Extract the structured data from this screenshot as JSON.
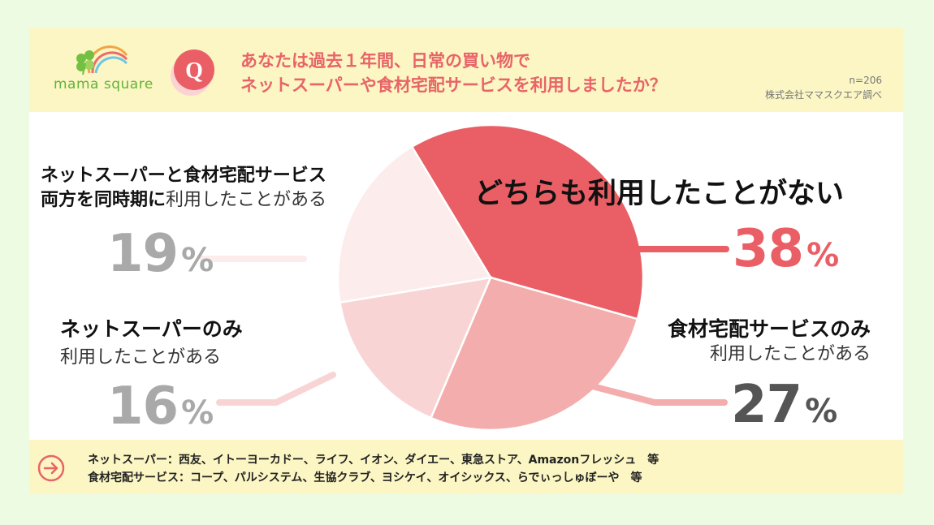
{
  "header": {
    "logo_text": "mama square",
    "badge_letter": "Q",
    "question_line1": "あなたは過去１年間、日常の買い物で",
    "question_line2": "ネットスーパーや食材宅配サービスを利用しましたか？",
    "sample_size": "n=206",
    "source": "株式会社ママスクエア調べ"
  },
  "labels": {
    "neither": {
      "line1": "どちらも利用したことがない",
      "pct": "38",
      "unit": "%"
    },
    "delivery_only": {
      "line1": "食材宅配サービスのみ",
      "line2": "利用したことがある",
      "pct": "27",
      "unit": "%"
    },
    "netsuper_only": {
      "line1": "ネットスーパーのみ",
      "line2": "利用したことがある",
      "pct": "16",
      "unit": "%"
    },
    "both": {
      "line1": "ネットスーパーと食材宅配サービス",
      "line2_bold": "両方を同時期に",
      "line2_thin": "利用したことがある",
      "pct": "19",
      "unit": "%"
    }
  },
  "footer": {
    "line1": "ネットスーパー：西友、イトーヨーカドー、ライフ、イオン、ダイエー、東急ストア、Amazonフレッシュ　等",
    "line2": "食材宅配サービス：コープ、パルシステム、生協クラブ、ヨシケイ、オイシックス、らでぃっしゅぼーや　等"
  },
  "colors": {
    "neither": "#ea5f65",
    "delivery_only": "#f4adad",
    "netsuper_only": "#f8d5d4",
    "both": "#fcecec",
    "accent": "#e86468",
    "gray_text": "#a9a9a9"
  },
  "chart_data": {
    "type": "pie",
    "start_angle_deg": -31,
    "slices": [
      {
        "key": "neither",
        "label": "どちらも利用したことがない",
        "value": 38
      },
      {
        "key": "delivery_only",
        "label": "食材宅配サービスのみ利用したことがある",
        "value": 27
      },
      {
        "key": "netsuper_only",
        "label": "ネットスーパーのみ利用したことがある",
        "value": 16
      },
      {
        "key": "both",
        "label": "ネットスーパーと食材宅配サービス両方を同時期に利用したことがある",
        "value": 19
      }
    ]
  }
}
